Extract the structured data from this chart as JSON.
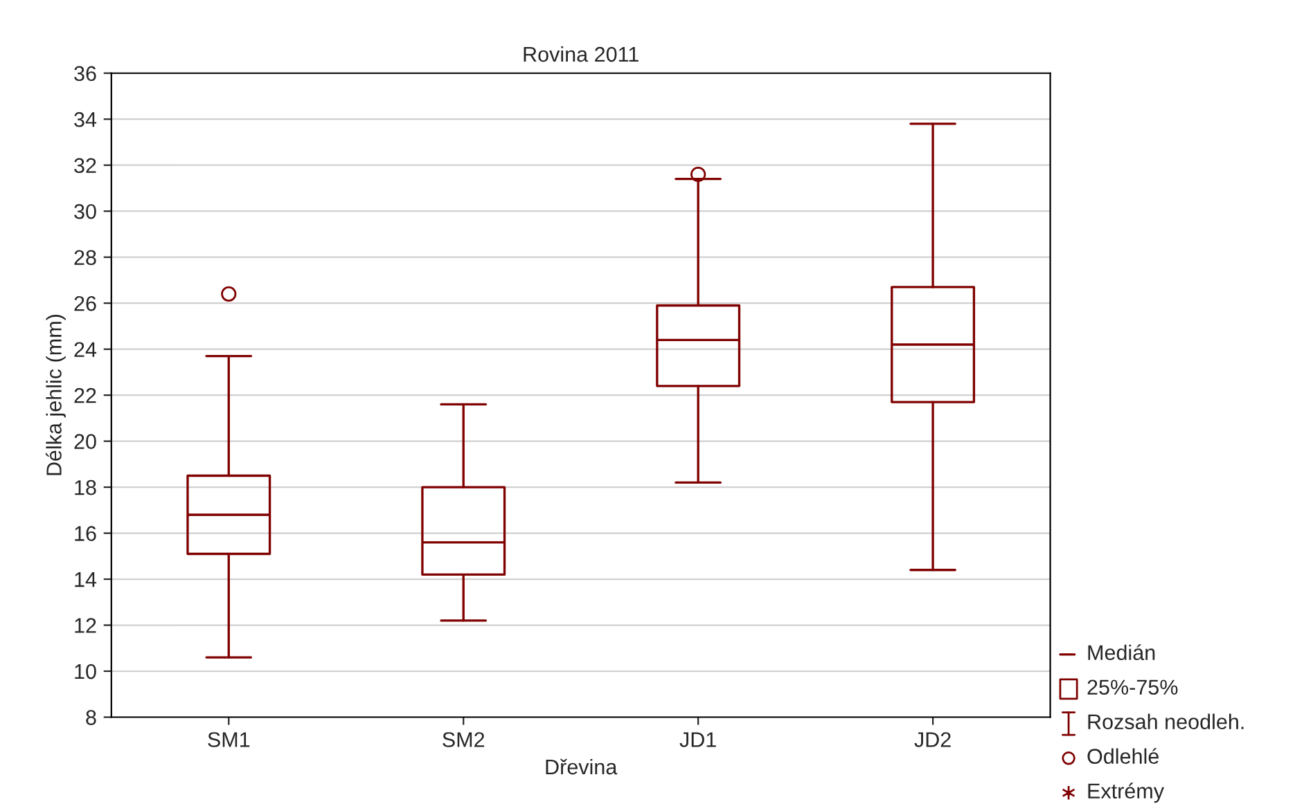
{
  "chart_data": {
    "type": "box",
    "title": "Rovina 2011",
    "xlabel": "Dřevina",
    "ylabel": "Délka jehlic (mm)",
    "categories": [
      "SM1",
      "SM2",
      "JD1",
      "JD2"
    ],
    "series": [
      {
        "color": "#800000",
        "boxes": [
          {
            "low": 10.6,
            "q1": 15.1,
            "median": 16.8,
            "q3": 18.5,
            "high": 23.7,
            "outliers": [
              26.4
            ]
          },
          {
            "low": 12.2,
            "q1": 14.2,
            "median": 15.6,
            "q3": 18.0,
            "high": 21.6
          },
          {
            "low": 18.2,
            "q1": 22.4,
            "median": 24.4,
            "q3": 25.9,
            "high": 31.4,
            "outliers": [
              31.6
            ]
          },
          {
            "low": 14.4,
            "q1": 21.7,
            "median": 24.2,
            "q3": 26.7,
            "high": 33.8
          }
        ]
      }
    ],
    "ylim": [
      8,
      36
    ],
    "yticks": [
      8,
      10,
      12,
      14,
      16,
      18,
      20,
      22,
      24,
      26,
      28,
      30,
      32,
      34,
      36
    ],
    "grid": "y",
    "annotations": [
      "Medián",
      "25%-75%",
      "Rozsah neodleh.",
      "Odlehlé",
      "Extrémy"
    ]
  }
}
